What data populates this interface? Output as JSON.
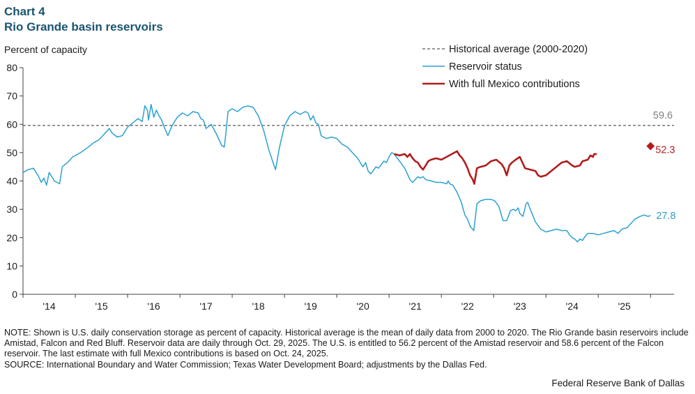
{
  "chart_data": {
    "type": "line",
    "title": "Chart 4",
    "subtitle": "Rio Grande basin reservoirs",
    "ylabel": "Percent of capacity",
    "xlabel": "",
    "ylim": [
      0,
      80
    ],
    "xlim": [
      2013.5,
      2025.95
    ],
    "y_ticks": [
      0,
      10,
      20,
      30,
      40,
      50,
      60,
      70,
      80
    ],
    "x_ticks": [
      {
        "label": "'14",
        "value": 2014.0
      },
      {
        "label": "'15",
        "value": 2015.0
      },
      {
        "label": "'16",
        "value": 2016.0
      },
      {
        "label": "'17",
        "value": 2017.0
      },
      {
        "label": "'18",
        "value": 2018.0
      },
      {
        "label": "'19",
        "value": 2019.0
      },
      {
        "label": "'20",
        "value": 2020.0
      },
      {
        "label": "'21",
        "value": 2021.0
      },
      {
        "label": "'22",
        "value": 2022.0
      },
      {
        "label": "'23",
        "value": 2023.0
      },
      {
        "label": "'24",
        "value": 2024.0
      },
      {
        "label": "'25",
        "value": 2025.0
      }
    ],
    "grid": false,
    "legend_position": "top-right",
    "series": [
      {
        "name": "Historical average (2000-2020)",
        "style": "dashed",
        "color": "#595959",
        "value": 59.6,
        "end_label": "59.6",
        "label_color": "#7f7f7f"
      },
      {
        "name": "Reservoir status",
        "style": "solid",
        "color": "#2aa1cf",
        "end_label": "27.8",
        "label_color": "#2aa1cf",
        "points": [
          [
            2013.5,
            43.0
          ],
          [
            2013.6,
            44.0
          ],
          [
            2013.7,
            44.5
          ],
          [
            2013.8,
            41.5
          ],
          [
            2013.85,
            39.5
          ],
          [
            2013.9,
            41.0
          ],
          [
            2013.95,
            38.5
          ],
          [
            2014.0,
            43.0
          ],
          [
            2014.1,
            40.0
          ],
          [
            2014.2,
            39.0
          ],
          [
            2014.25,
            45.0
          ],
          [
            2014.35,
            46.5
          ],
          [
            2014.45,
            48.5
          ],
          [
            2014.6,
            50.0
          ],
          [
            2014.75,
            52.0
          ],
          [
            2014.85,
            53.5
          ],
          [
            2014.95,
            54.5
          ],
          [
            2015.05,
            56.5
          ],
          [
            2015.15,
            58.5
          ],
          [
            2015.2,
            57.0
          ],
          [
            2015.3,
            55.5
          ],
          [
            2015.4,
            56.0
          ],
          [
            2015.5,
            59.0
          ],
          [
            2015.6,
            60.5
          ],
          [
            2015.7,
            62.0
          ],
          [
            2015.78,
            61.0
          ],
          [
            2015.83,
            66.5
          ],
          [
            2015.88,
            65.0
          ],
          [
            2015.9,
            61.5
          ],
          [
            2015.95,
            67.0
          ],
          [
            2016.0,
            62.5
          ],
          [
            2016.05,
            65.0
          ],
          [
            2016.1,
            63.0
          ],
          [
            2016.15,
            61.5
          ],
          [
            2016.2,
            59.0
          ],
          [
            2016.27,
            56.0
          ],
          [
            2016.35,
            59.5
          ],
          [
            2016.45,
            62.5
          ],
          [
            2016.55,
            64.0
          ],
          [
            2016.65,
            63.0
          ],
          [
            2016.75,
            64.5
          ],
          [
            2016.85,
            64.0
          ],
          [
            2016.9,
            62.0
          ],
          [
            2016.95,
            61.5
          ],
          [
            2017.0,
            58.5
          ],
          [
            2017.1,
            60.0
          ],
          [
            2017.2,
            56.5
          ],
          [
            2017.3,
            52.5
          ],
          [
            2017.35,
            52.0
          ],
          [
            2017.38,
            57.0
          ],
          [
            2017.42,
            64.5
          ],
          [
            2017.5,
            65.5
          ],
          [
            2017.6,
            64.5
          ],
          [
            2017.7,
            66.0
          ],
          [
            2017.8,
            66.5
          ],
          [
            2017.9,
            66.0
          ],
          [
            2018.0,
            63.0
          ],
          [
            2018.1,
            58.0
          ],
          [
            2018.2,
            51.0
          ],
          [
            2018.3,
            45.5
          ],
          [
            2018.33,
            44.0
          ],
          [
            2018.4,
            51.5
          ],
          [
            2018.5,
            59.5
          ],
          [
            2018.6,
            63.0
          ],
          [
            2018.7,
            64.5
          ],
          [
            2018.8,
            63.5
          ],
          [
            2018.9,
            64.5
          ],
          [
            2018.95,
            64.0
          ],
          [
            2019.0,
            61.5
          ],
          [
            2019.05,
            63.0
          ],
          [
            2019.1,
            60.5
          ],
          [
            2019.15,
            60.0
          ],
          [
            2019.2,
            56.0
          ],
          [
            2019.3,
            55.0
          ],
          [
            2019.4,
            55.5
          ],
          [
            2019.5,
            55.0
          ],
          [
            2019.6,
            53.0
          ],
          [
            2019.7,
            52.0
          ],
          [
            2019.8,
            50.0
          ],
          [
            2019.9,
            48.0
          ],
          [
            2020.0,
            45.0
          ],
          [
            2020.05,
            46.5
          ],
          [
            2020.1,
            43.5
          ],
          [
            2020.15,
            42.5
          ],
          [
            2020.25,
            45.0
          ],
          [
            2020.3,
            44.5
          ],
          [
            2020.4,
            47.0
          ],
          [
            2020.45,
            46.5
          ],
          [
            2020.5,
            48.5
          ],
          [
            2020.55,
            50.0
          ],
          [
            2020.6,
            49.5
          ],
          [
            2020.7,
            47.0
          ],
          [
            2020.8,
            44.5
          ],
          [
            2020.9,
            40.5
          ],
          [
            2020.95,
            39.5
          ],
          [
            2021.0,
            40.5
          ],
          [
            2021.05,
            41.5
          ],
          [
            2021.1,
            41.0
          ],
          [
            2021.15,
            41.5
          ],
          [
            2021.2,
            40.5
          ],
          [
            2021.3,
            40.0
          ],
          [
            2021.4,
            39.5
          ],
          [
            2021.5,
            39.5
          ],
          [
            2021.6,
            39.0
          ],
          [
            2021.63,
            40.0
          ],
          [
            2021.66,
            39.0
          ],
          [
            2021.72,
            38.5
          ],
          [
            2021.8,
            36.0
          ],
          [
            2021.88,
            32.5
          ],
          [
            2021.95,
            28.0
          ],
          [
            2022.0,
            26.5
          ],
          [
            2022.05,
            24.0
          ],
          [
            2022.12,
            22.5
          ],
          [
            2022.18,
            32.0
          ],
          [
            2022.25,
            33.0
          ],
          [
            2022.35,
            33.5
          ],
          [
            2022.45,
            33.5
          ],
          [
            2022.52,
            33.0
          ],
          [
            2022.6,
            31.0
          ],
          [
            2022.68,
            26.0
          ],
          [
            2022.75,
            26.0
          ],
          [
            2022.82,
            29.5
          ],
          [
            2022.88,
            30.0
          ],
          [
            2022.92,
            29.5
          ],
          [
            2022.97,
            30.5
          ],
          [
            2023.0,
            28.5
          ],
          [
            2023.06,
            27.5
          ],
          [
            2023.12,
            32.0
          ],
          [
            2023.15,
            32.5
          ],
          [
            2023.2,
            30.0
          ],
          [
            2023.3,
            25.5
          ],
          [
            2023.4,
            23.0
          ],
          [
            2023.5,
            22.0
          ],
          [
            2023.6,
            22.5
          ],
          [
            2023.7,
            23.0
          ],
          [
            2023.8,
            22.5
          ],
          [
            2023.9,
            22.5
          ],
          [
            2023.95,
            21.0
          ],
          [
            2024.0,
            20.0
          ],
          [
            2024.05,
            19.5
          ],
          [
            2024.1,
            18.5
          ],
          [
            2024.15,
            19.5
          ],
          [
            2024.2,
            19.0
          ],
          [
            2024.25,
            20.5
          ],
          [
            2024.3,
            21.5
          ],
          [
            2024.4,
            21.5
          ],
          [
            2024.5,
            21.0
          ],
          [
            2024.6,
            21.5
          ],
          [
            2024.7,
            22.0
          ],
          [
            2024.8,
            22.5
          ],
          [
            2024.88,
            21.5
          ],
          [
            2024.95,
            23.0
          ],
          [
            2025.05,
            23.5
          ],
          [
            2025.15,
            25.5
          ],
          [
            2025.2,
            26.5
          ],
          [
            2025.25,
            27.0
          ],
          [
            2025.3,
            27.5
          ],
          [
            2025.38,
            28.0
          ],
          [
            2025.45,
            27.5
          ],
          [
            2025.5,
            27.8
          ]
        ]
      },
      {
        "name": "With full Mexico contributions",
        "style": "solid",
        "color": "#b11c1c",
        "end_label": "52.3",
        "label_color": "#b11c1c",
        "end_marker_value": 52.3,
        "points": [
          [
            2020.6,
            49.5
          ],
          [
            2020.7,
            49.0
          ],
          [
            2020.8,
            49.5
          ],
          [
            2020.85,
            48.5
          ],
          [
            2020.9,
            49.5
          ],
          [
            2020.95,
            48.0
          ],
          [
            2021.0,
            47.0
          ],
          [
            2021.05,
            46.5
          ],
          [
            2021.1,
            45.0
          ],
          [
            2021.15,
            44.0
          ],
          [
            2021.2,
            45.5
          ],
          [
            2021.25,
            47.0
          ],
          [
            2021.3,
            47.5
          ],
          [
            2021.4,
            48.0
          ],
          [
            2021.5,
            47.5
          ],
          [
            2021.6,
            48.5
          ],
          [
            2021.7,
            49.5
          ],
          [
            2021.75,
            50.0
          ],
          [
            2021.8,
            50.5
          ],
          [
            2021.85,
            49.0
          ],
          [
            2021.9,
            48.0
          ],
          [
            2021.95,
            46.5
          ],
          [
            2022.0,
            44.5
          ],
          [
            2022.05,
            42.0
          ],
          [
            2022.1,
            40.5
          ],
          [
            2022.13,
            39.0
          ],
          [
            2022.18,
            44.5
          ],
          [
            2022.25,
            45.0
          ],
          [
            2022.35,
            45.5
          ],
          [
            2022.45,
            47.0
          ],
          [
            2022.55,
            47.5
          ],
          [
            2022.65,
            46.0
          ],
          [
            2022.7,
            44.5
          ],
          [
            2022.75,
            42.0
          ],
          [
            2022.8,
            45.5
          ],
          [
            2022.85,
            46.5
          ],
          [
            2022.92,
            47.5
          ],
          [
            2023.0,
            48.5
          ],
          [
            2023.05,
            46.5
          ],
          [
            2023.1,
            44.5
          ],
          [
            2023.2,
            44.0
          ],
          [
            2023.3,
            43.5
          ],
          [
            2023.35,
            42.0
          ],
          [
            2023.4,
            41.5
          ],
          [
            2023.5,
            42.0
          ],
          [
            2023.6,
            43.5
          ],
          [
            2023.7,
            45.0
          ],
          [
            2023.8,
            46.5
          ],
          [
            2023.9,
            47.0
          ],
          [
            2024.0,
            45.5
          ],
          [
            2024.05,
            45.0
          ],
          [
            2024.15,
            45.5
          ],
          [
            2024.2,
            47.0
          ],
          [
            2024.3,
            47.5
          ],
          [
            2024.35,
            49.0
          ],
          [
            2024.4,
            48.5
          ],
          [
            2024.42,
            49.5
          ],
          [
            2024.47,
            49.5
          ]
        ]
      }
    ]
  },
  "note": "NOTE: Shown is U.S. daily conservation storage as percent of capacity. Historical average is the mean of daily data from 2000 to 2020. The Rio Grande basin reservoirs include Amistad, Falcon and Red Bluff. Reservoir data are daily through Oct. 29, 2025. The U.S. is entitled to 56.2 percent of the Amistad reservoir and 58.6 percent of the Falcon reservoir. The last estimate with full Mexico contributions is based on Oct. 24, 2025.",
  "source": "SOURCE: International  Boundary and Water Commission; Texas Water Development Board; adjustments by the Dallas Fed.",
  "credit": "Federal Reserve Bank of Dallas"
}
